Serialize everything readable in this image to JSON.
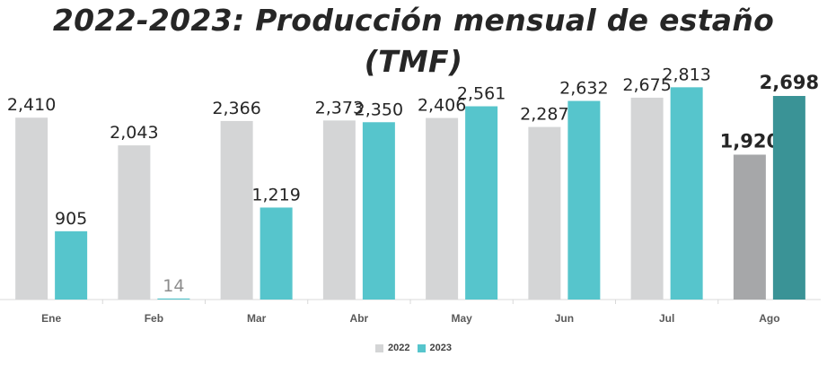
{
  "title": "2022-2023: Producción mensual de estaño (TMF)",
  "chart_data": {
    "type": "bar",
    "title": "2022-2023: Producción mensual de estaño (TMF)",
    "xlabel": "",
    "ylabel": "",
    "ylim": [
      0,
      3000
    ],
    "grid": false,
    "legend_position": "bottom",
    "categories": [
      "Ene",
      "Feb",
      "Mar",
      "Abr",
      "May",
      "Jun",
      "Jul",
      "Ago"
    ],
    "series": [
      {
        "name": "2022",
        "color": "#d4d5d6",
        "highlight_color": "#a6a7a9",
        "values": [
          2410,
          2043,
          2366,
          2373,
          2406,
          2287,
          2675,
          1920
        ],
        "labels": [
          "2,410",
          "2,043",
          "2,366",
          "2,373",
          "2,406",
          "2,287",
          "2,675",
          "1,920"
        ]
      },
      {
        "name": "2023",
        "color": "#56c5cc",
        "highlight_color": "#3a9396",
        "values": [
          905,
          14,
          1219,
          2350,
          2561,
          2632,
          2813,
          2698
        ],
        "labels": [
          "905",
          "14",
          "1,219",
          "2,350",
          "2,561",
          "2,632",
          "2,813",
          "2,698"
        ]
      }
    ],
    "highlight_category": "Ago",
    "label_color": "#262626",
    "muted_label_color": "#8c8c8c",
    "axis_color": "#d9d9d9"
  }
}
